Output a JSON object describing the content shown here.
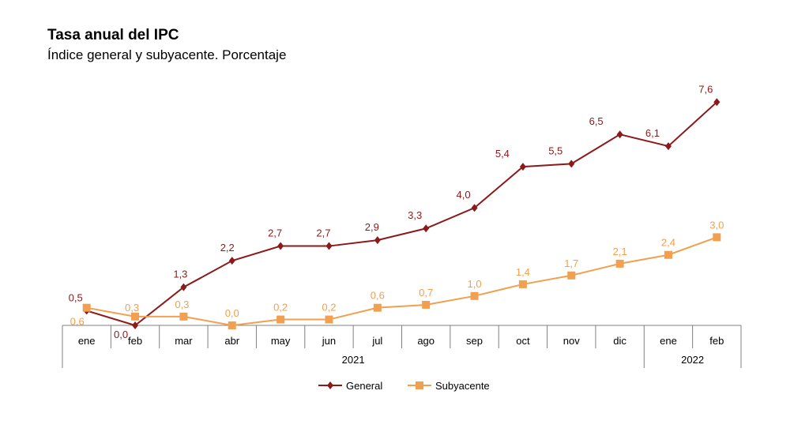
{
  "chart_data": {
    "type": "line",
    "title": "Tasa anual del IPC",
    "subtitle": "Índice general y subyacente. Porcentaje",
    "categories": [
      "ene",
      "feb",
      "mar",
      "abr",
      "may",
      "jun",
      "jul",
      "ago",
      "sep",
      "oct",
      "nov",
      "dic",
      "ene",
      "feb"
    ],
    "year_groups": [
      {
        "label": "2021",
        "start": 0,
        "end": 11
      },
      {
        "label": "2022",
        "start": 12,
        "end": 13
      }
    ],
    "ylim": [
      -0.6,
      8
    ],
    "grid": false,
    "legend_position": "bottom",
    "series": [
      {
        "name": "General",
        "color": "#8b1a1a",
        "marker": "diamond",
        "values": [
          0.5,
          0.0,
          1.3,
          2.2,
          2.7,
          2.7,
          2.9,
          3.3,
          4.0,
          5.4,
          5.5,
          6.5,
          6.1,
          7.6
        ],
        "labels": [
          "0,5",
          "0,0",
          "1,3",
          "2,2",
          "2,7",
          "2,7",
          "2,9",
          "3,3",
          "4,0",
          "5,4",
          "5,5",
          "6,5",
          "6,1",
          "7,6"
        ]
      },
      {
        "name": "Subyacente",
        "color": "#f0a050",
        "marker": "square",
        "values": [
          0.6,
          0.3,
          0.3,
          0.0,
          0.2,
          0.2,
          0.6,
          0.7,
          1.0,
          1.4,
          1.7,
          2.1,
          2.4,
          3.0
        ],
        "labels": [
          "0,6",
          "0,3",
          "0,3",
          "0,0",
          "0,2",
          "0,2",
          "0,6",
          "0,7",
          "1,0",
          "1,4",
          "1,7",
          "2,1",
          "2,4",
          "3,0"
        ]
      }
    ]
  }
}
